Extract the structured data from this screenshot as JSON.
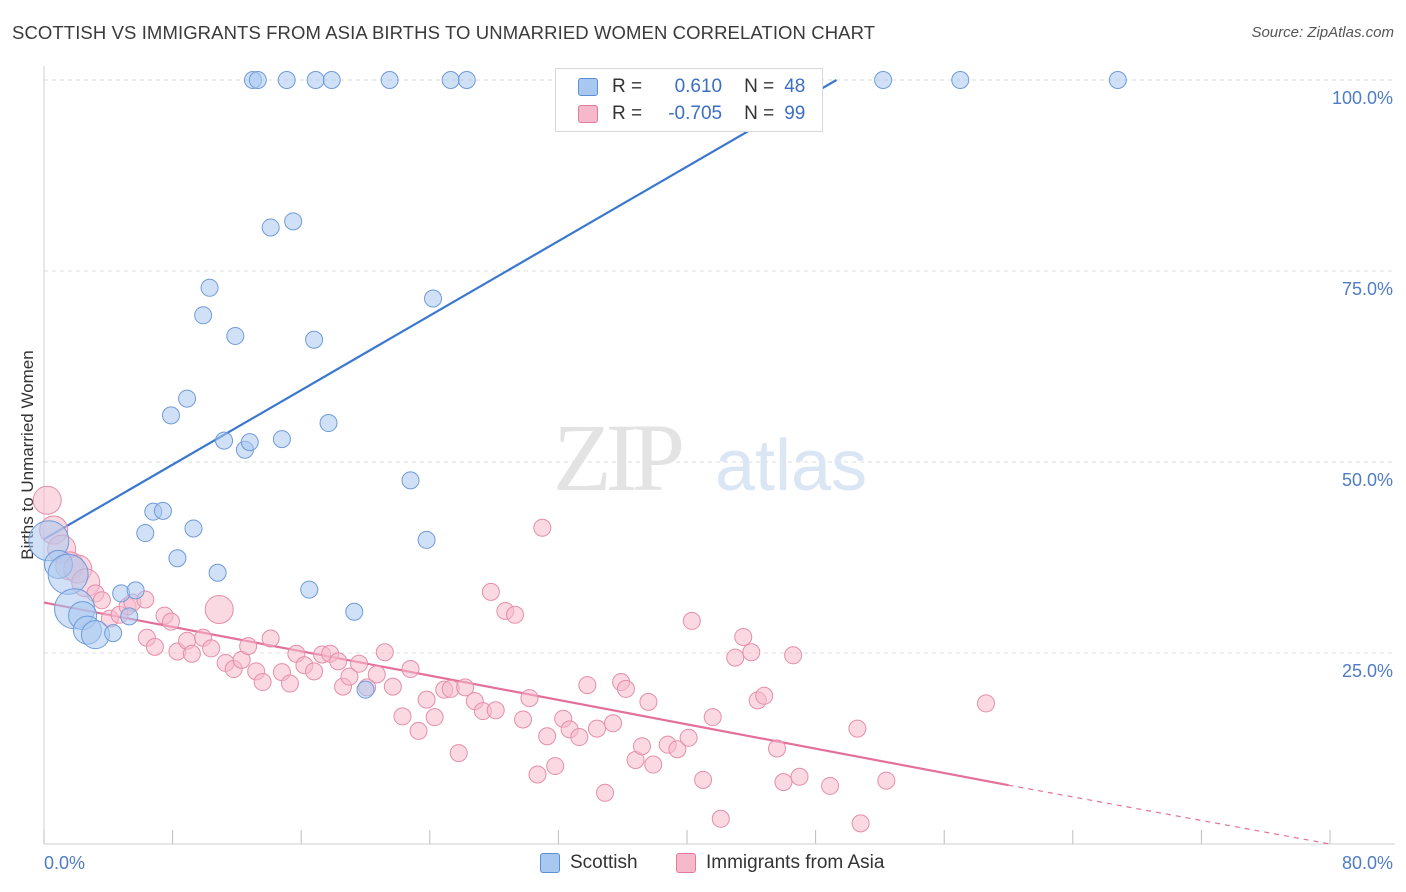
{
  "header": {
    "title": "SCOTTISH VS IMMIGRANTS FROM ASIA BIRTHS TO UNMARRIED WOMEN CORRELATION CHART",
    "source": "Source: ZipAtlas.com"
  },
  "watermark": {
    "zip": "ZIP",
    "atlas": "atlas"
  },
  "legend": {
    "rows": [
      {
        "r_label": "R =",
        "r_value": "0.610",
        "n_label": "N =",
        "n_value": "48",
        "color": "#a9c8f0",
        "border": "#5b8fd6"
      },
      {
        "r_label": "R =",
        "r_value": "-0.705",
        "n_label": "N =",
        "n_value": "99",
        "color": "#f6b9cc",
        "border": "#e27a9c"
      }
    ]
  },
  "bottom_legend": {
    "scottish": "Scottish",
    "asia": "Immigrants from Asia"
  },
  "colors": {
    "blue_fill": "#a9c8f0",
    "blue_stroke": "#6f9bd9",
    "blue_line": "#3a78cf",
    "pink_fill": "#f6b9cc",
    "pink_stroke": "#e58eab",
    "pink_line": "#e3709a",
    "grid": "#dcdcdc",
    "tick_text": "#4f7cc4"
  },
  "chart_data": {
    "type": "scatter",
    "title": "SCOTTISH VS IMMIGRANTS FROM ASIA BIRTHS TO UNMARRIED WOMEN CORRELATION CHART",
    "xlabel": "",
    "ylabel": "Births to Unmarried Women",
    "xlim": [
      0,
      80
    ],
    "ylim": [
      0,
      100
    ],
    "x_tick_labels": [
      "0.0%",
      "80.0%"
    ],
    "y_tick_labels": [
      "100.0%",
      "75.0%",
      "50.0%",
      "25.0%"
    ],
    "y_ticks": [
      100,
      75,
      50,
      25
    ],
    "grid": true,
    "legend_position": "top-center",
    "series": [
      {
        "name": "Scottish",
        "r": 0.61,
        "n": 48,
        "trend": {
          "x": [
            0,
            49.3
          ],
          "y": [
            39.9,
            100
          ]
        },
        "points": [
          [
            0.3,
            39.7,
            3
          ],
          [
            0.9,
            36.6,
            2
          ],
          [
            1.5,
            35.3,
            3
          ],
          [
            1.9,
            30.8,
            3
          ],
          [
            2.4,
            29.9,
            2
          ],
          [
            2.7,
            28.0,
            2
          ],
          [
            3.2,
            27.4,
            2
          ],
          [
            4.3,
            27.6,
            1
          ],
          [
            4.8,
            32.8,
            1
          ],
          [
            5.3,
            29.8,
            1
          ],
          [
            5.7,
            33.2,
            1
          ],
          [
            6.3,
            40.7,
            1
          ],
          [
            6.8,
            43.5,
            1
          ],
          [
            7.4,
            43.6,
            1
          ],
          [
            7.9,
            56.1,
            1
          ],
          [
            8.3,
            37.4,
            1
          ],
          [
            8.9,
            58.3,
            1
          ],
          [
            9.3,
            41.3,
            1
          ],
          [
            9.9,
            69.2,
            1
          ],
          [
            10.3,
            72.8,
            1
          ],
          [
            10.8,
            35.5,
            1
          ],
          [
            11.2,
            52.8,
            1
          ],
          [
            11.9,
            66.5,
            1
          ],
          [
            12.5,
            51.6,
            1
          ],
          [
            12.8,
            52.6,
            1
          ],
          [
            13.0,
            100,
            1
          ],
          [
            13.3,
            100,
            1
          ],
          [
            14.1,
            80.7,
            1
          ],
          [
            14.8,
            53.0,
            1
          ],
          [
            15.1,
            100,
            1
          ],
          [
            15.5,
            81.5,
            1
          ],
          [
            16.5,
            33.3,
            1
          ],
          [
            16.8,
            66.0,
            1
          ],
          [
            16.9,
            100,
            1
          ],
          [
            17.7,
            55.1,
            1
          ],
          [
            17.9,
            100,
            1
          ],
          [
            19.3,
            30.4,
            1
          ],
          [
            20.0,
            20.2,
            1
          ],
          [
            21.5,
            100,
            1
          ],
          [
            22.8,
            47.6,
            1
          ],
          [
            23.8,
            39.8,
            1
          ],
          [
            24.2,
            71.4,
            1
          ],
          [
            25.3,
            100,
            1
          ],
          [
            26.3,
            100,
            1
          ],
          [
            52.2,
            100,
            1
          ],
          [
            57.0,
            100,
            1
          ],
          [
            66.8,
            100,
            1
          ]
        ]
      },
      {
        "name": "Immigrants from Asia",
        "r": -0.705,
        "n": 99,
        "trend": {
          "x": [
            0,
            60.0,
            80.0
          ],
          "y": [
            31.6,
            7.7,
            0
          ],
          "solid_until_x": 60.0
        },
        "points": [
          [
            0.2,
            45.0,
            2
          ],
          [
            0.6,
            41.1,
            2
          ],
          [
            1.1,
            38.6,
            2
          ],
          [
            1.6,
            36.4,
            2
          ],
          [
            2.1,
            36.0,
            2
          ],
          [
            2.6,
            34.2,
            2
          ],
          [
            3.2,
            32.8,
            1
          ],
          [
            3.6,
            31.9,
            1
          ],
          [
            4.1,
            29.5,
            1
          ],
          [
            4.7,
            30.0,
            1
          ],
          [
            5.2,
            31.1,
            1
          ],
          [
            5.5,
            31.6,
            1
          ],
          [
            6.3,
            32.0,
            1
          ],
          [
            6.4,
            27.0,
            1
          ],
          [
            6.9,
            25.8,
            1
          ],
          [
            7.5,
            29.9,
            1
          ],
          [
            7.9,
            29.1,
            1
          ],
          [
            8.3,
            25.2,
            1
          ],
          [
            8.9,
            26.6,
            1
          ],
          [
            9.2,
            24.9,
            1
          ],
          [
            9.9,
            27.0,
            1
          ],
          [
            10.4,
            25.6,
            1
          ],
          [
            10.9,
            30.7,
            2
          ],
          [
            11.3,
            23.7,
            1
          ],
          [
            11.8,
            22.9,
            1
          ],
          [
            12.3,
            24.1,
            1
          ],
          [
            12.7,
            25.9,
            1
          ],
          [
            13.2,
            22.6,
            1
          ],
          [
            13.6,
            21.2,
            1
          ],
          [
            14.1,
            26.9,
            1
          ],
          [
            14.8,
            22.5,
            1
          ],
          [
            15.3,
            21.0,
            1
          ],
          [
            15.7,
            24.9,
            1
          ],
          [
            16.2,
            23.4,
            1
          ],
          [
            16.8,
            22.6,
            1
          ],
          [
            17.3,
            24.8,
            1
          ],
          [
            17.8,
            24.9,
            1
          ],
          [
            18.3,
            23.9,
            1
          ],
          [
            18.6,
            20.6,
            1
          ],
          [
            19.0,
            21.9,
            1
          ],
          [
            19.6,
            23.6,
            1
          ],
          [
            20.1,
            20.5,
            1
          ],
          [
            20.7,
            22.2,
            1
          ],
          [
            21.2,
            25.1,
            1
          ],
          [
            21.7,
            20.6,
            1
          ],
          [
            22.3,
            16.7,
            1
          ],
          [
            22.8,
            22.9,
            1
          ],
          [
            23.3,
            14.8,
            1
          ],
          [
            23.8,
            18.9,
            1
          ],
          [
            24.3,
            16.6,
            1
          ],
          [
            24.9,
            20.2,
            1
          ],
          [
            25.3,
            20.3,
            1
          ],
          [
            25.8,
            11.9,
            1
          ],
          [
            26.2,
            20.5,
            1
          ],
          [
            26.8,
            18.7,
            1
          ],
          [
            27.3,
            17.4,
            1
          ],
          [
            27.8,
            33.0,
            1
          ],
          [
            28.1,
            17.5,
            1
          ],
          [
            28.7,
            30.5,
            1
          ],
          [
            29.3,
            30.0,
            1
          ],
          [
            29.8,
            16.3,
            1
          ],
          [
            30.2,
            19.1,
            1
          ],
          [
            31.0,
            41.4,
            1
          ],
          [
            30.7,
            9.1,
            1
          ],
          [
            31.3,
            14.1,
            1
          ],
          [
            31.8,
            10.2,
            1
          ],
          [
            32.3,
            16.4,
            1
          ],
          [
            32.7,
            15.0,
            1
          ],
          [
            33.3,
            14.0,
            1
          ],
          [
            33.8,
            20.8,
            1
          ],
          [
            34.4,
            15.1,
            1
          ],
          [
            34.9,
            6.7,
            1
          ],
          [
            35.4,
            15.8,
            1
          ],
          [
            35.9,
            21.2,
            1
          ],
          [
            36.2,
            20.3,
            1
          ],
          [
            36.8,
            11.0,
            1
          ],
          [
            37.2,
            12.8,
            1
          ],
          [
            37.6,
            18.6,
            1
          ],
          [
            37.9,
            10.4,
            1
          ],
          [
            38.8,
            13.0,
            1
          ],
          [
            39.4,
            12.4,
            1
          ],
          [
            40.1,
            13.9,
            1
          ],
          [
            40.3,
            29.2,
            1
          ],
          [
            41.0,
            8.4,
            1
          ],
          [
            41.6,
            16.6,
            1
          ],
          [
            42.1,
            3.3,
            1
          ],
          [
            43.0,
            24.4,
            1
          ],
          [
            43.5,
            27.1,
            1
          ],
          [
            44.0,
            25.1,
            1
          ],
          [
            44.4,
            18.8,
            1
          ],
          [
            44.8,
            19.4,
            1
          ],
          [
            45.6,
            12.5,
            1
          ],
          [
            46.0,
            8.1,
            1
          ],
          [
            46.6,
            24.7,
            1
          ],
          [
            47.0,
            8.8,
            1
          ],
          [
            48.9,
            7.6,
            1
          ],
          [
            50.6,
            15.1,
            1
          ],
          [
            50.8,
            2.7,
            1
          ],
          [
            52.4,
            8.3,
            1
          ],
          [
            58.6,
            18.4,
            1
          ]
        ]
      }
    ]
  }
}
